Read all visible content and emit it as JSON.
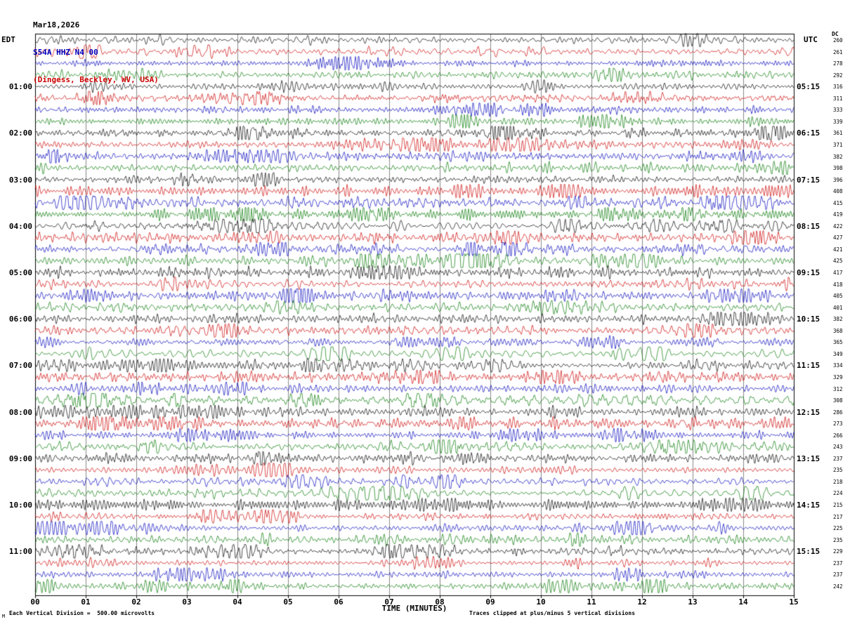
{
  "header": {
    "date": "Mar18,2026",
    "station": "S54A HHZ N4 00",
    "location": "(Dingess, Beckley, WV, USA)"
  },
  "footer": {
    "mark": "M",
    "scale_note": "Each Vertical Division =  500.00 microvolts",
    "clip_note": "Traces clipped at plus/minus 5 vertical divisions"
  },
  "chart_data": {
    "type": "line",
    "subtype": "helicorder_seismogram",
    "title": "S54A HHZ N4 00 (Dingess, Beckley, WV, USA) Mar18,2026",
    "xlabel": "TIME (MINUTES)",
    "x_range_minutes": [
      0,
      15
    ],
    "minutes_per_row": 15,
    "grid": true,
    "x_ticks": [
      "00",
      "01",
      "02",
      "03",
      "04",
      "05",
      "06",
      "07",
      "08",
      "09",
      "10",
      "11",
      "12",
      "13",
      "14",
      "15"
    ],
    "trace_color_cycle": [
      "#000000",
      "#cc0000",
      "#0000bb",
      "#007700"
    ],
    "left_axis_title": "EDT",
    "right_axis_title": "UTC",
    "dc_column_header": "DC",
    "rows": [
      {
        "dc": 260
      },
      {
        "dc": 261
      },
      {
        "dc": 278
      },
      {
        "dc": 292
      },
      {
        "dc": 316,
        "left": "01:00",
        "right": "05:15"
      },
      {
        "dc": 311
      },
      {
        "dc": 333
      },
      {
        "dc": 339
      },
      {
        "dc": 361,
        "left": "02:00",
        "right": "06:15"
      },
      {
        "dc": 371
      },
      {
        "dc": 382
      },
      {
        "dc": 398
      },
      {
        "dc": 396,
        "left": "03:00",
        "right": "07:15"
      },
      {
        "dc": 408
      },
      {
        "dc": 415
      },
      {
        "dc": 419
      },
      {
        "dc": 422,
        "left": "04:00",
        "right": "08:15"
      },
      {
        "dc": 427
      },
      {
        "dc": 421
      },
      {
        "dc": 425
      },
      {
        "dc": 417,
        "left": "05:00",
        "right": "09:15"
      },
      {
        "dc": 418
      },
      {
        "dc": 405
      },
      {
        "dc": 401
      },
      {
        "dc": 382,
        "left": "06:00",
        "right": "10:15"
      },
      {
        "dc": 368
      },
      {
        "dc": 365
      },
      {
        "dc": 349
      },
      {
        "dc": 334,
        "left": "07:00",
        "right": "11:15"
      },
      {
        "dc": 329
      },
      {
        "dc": 312
      },
      {
        "dc": 308
      },
      {
        "dc": 286,
        "left": "08:00",
        "right": "12:15"
      },
      {
        "dc": 273
      },
      {
        "dc": 266
      },
      {
        "dc": 243
      },
      {
        "dc": 237,
        "left": "09:00",
        "right": "13:15"
      },
      {
        "dc": 235
      },
      {
        "dc": 218
      },
      {
        "dc": 224
      },
      {
        "dc": 215,
        "left": "10:00",
        "right": "14:15"
      },
      {
        "dc": 217
      },
      {
        "dc": 225
      },
      {
        "dc": 235
      },
      {
        "dc": 229,
        "left": "11:00",
        "right": "15:15"
      },
      {
        "dc": 237
      },
      {
        "dc": 237
      },
      {
        "dc": 242
      }
    ]
  }
}
